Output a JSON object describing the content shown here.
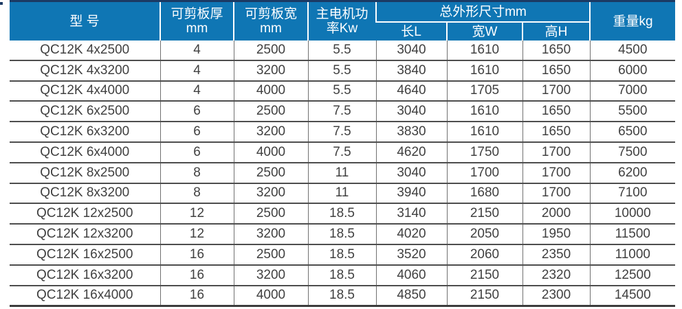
{
  "colors": {
    "header_bg": "#0f76b4",
    "header_top_line": "#1b3a64",
    "header_text": "#ffffff",
    "body_text": "#404040",
    "row_line": "#4d4d4d",
    "column_line": "#707070"
  },
  "table": {
    "header": {
      "model": "型 号",
      "thickness_line1": "可剪板厚",
      "thickness_line2": "mm",
      "cut_width_line1": "可剪板宽",
      "cut_width_line2": "mm",
      "motor_power_line1": "主电机功",
      "motor_power_line2": "率Kw",
      "dimensions_group": "总外形尺寸mm",
      "dim_length": "长L",
      "dim_width": "宽W",
      "dim_height": "高H",
      "weight": "重量kg"
    },
    "rows": [
      [
        "QC12K 4x2500",
        "4",
        "2500",
        "5.5",
        "3040",
        "1610",
        "1650",
        "4500"
      ],
      [
        "QC12K 4x3200",
        "4",
        "3200",
        "5.5",
        "3840",
        "1610",
        "1650",
        "6000"
      ],
      [
        "QC12K 4x4000",
        "4",
        "4000",
        "5.5",
        "4640",
        "1705",
        "1700",
        "7000"
      ],
      [
        "QC12K 6x2500",
        "6",
        "2500",
        "7.5",
        "3040",
        "1610",
        "1650",
        "5500"
      ],
      [
        "QC12K 6x3200",
        "6",
        "3200",
        "7.5",
        "3830",
        "1610",
        "1650",
        "6500"
      ],
      [
        "QC12K 6x4000",
        "6",
        "4000",
        "7.5",
        "4620",
        "1750",
        "1700",
        "7500"
      ],
      [
        "QC12K 8x2500",
        "8",
        "2500",
        "11",
        "3040",
        "1700",
        "1700",
        "6200"
      ],
      [
        "QC12K 8x3200",
        "8",
        "3200",
        "11",
        "3940",
        "1680",
        "1700",
        "7100"
      ],
      [
        "QC12K 12x2500",
        "12",
        "2500",
        "18.5",
        "3140",
        "2150",
        "2000",
        "10000"
      ],
      [
        "QC12K 12x3200",
        "12",
        "3200",
        "18.5",
        "4020",
        "2050",
        "1950",
        "11500"
      ],
      [
        "QC12K 16x2500",
        "16",
        "2500",
        "18.5",
        "3520",
        "2060",
        "2350",
        "11000"
      ],
      [
        "QC12K 16x3200",
        "16",
        "3200",
        "18.5",
        "4060",
        "2150",
        "2320",
        "12500"
      ],
      [
        "QC12K 16x4000",
        "16",
        "4000",
        "18.5",
        "4850",
        "2150",
        "2300",
        "14500"
      ]
    ]
  }
}
